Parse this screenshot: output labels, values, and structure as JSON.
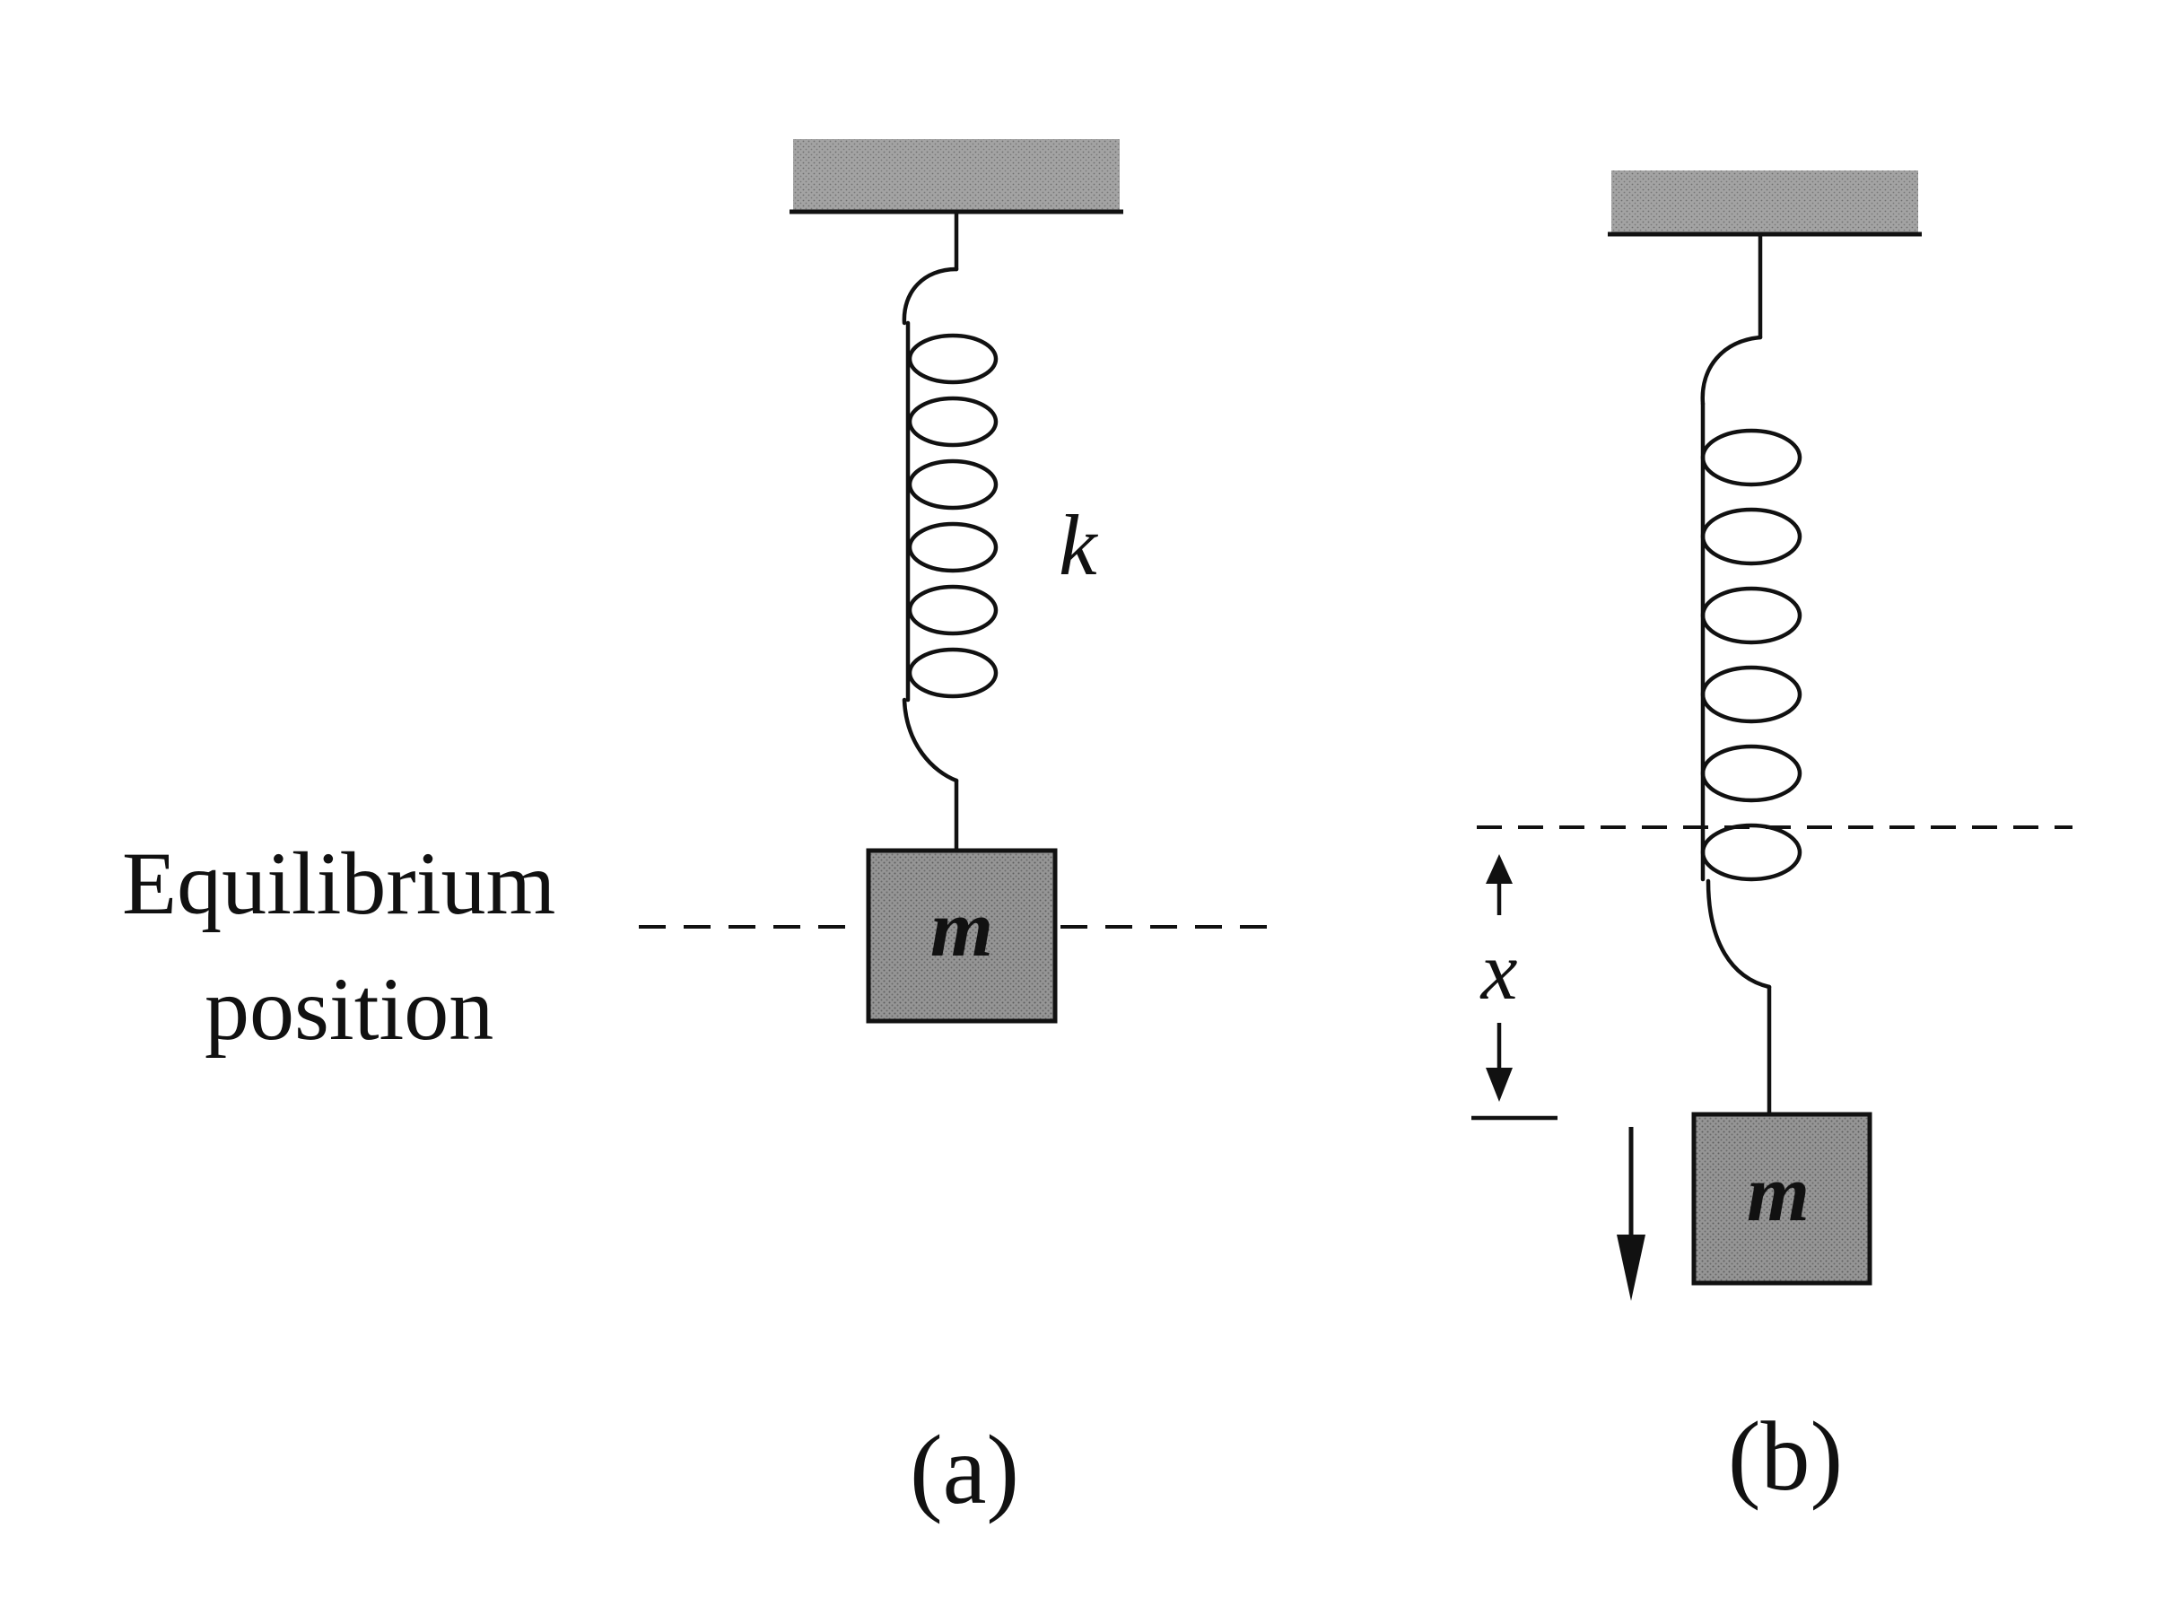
{
  "equilibrium_label": {
    "line1": "Equilibrium",
    "line2": "position"
  },
  "spring_constant_label": "k",
  "mass_label_a": "m",
  "mass_label_b": "m",
  "displacement_label": "x",
  "panel_labels": {
    "a": "(a)",
    "b": "(b)"
  },
  "colors": {
    "ink": "#111111",
    "block_fill": "#9a9a9a",
    "ceiling_fill": "#a6a6a6"
  }
}
